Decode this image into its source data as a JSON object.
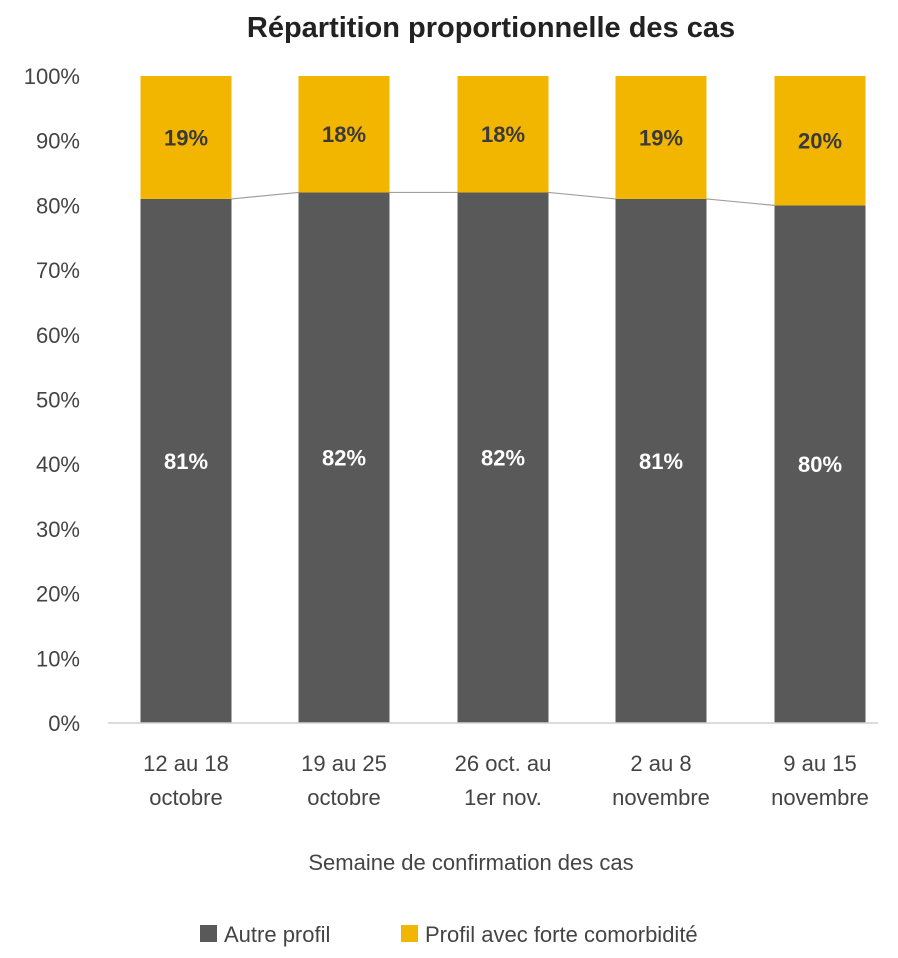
{
  "chart_data": {
    "type": "bar",
    "stacked": true,
    "title": "Répartition proportionnelle des cas",
    "xlabel": "Semaine de confirmation des cas",
    "ylabel": "",
    "ylim": [
      0,
      100
    ],
    "y_ticks": [
      "0%",
      "10%",
      "20%",
      "30%",
      "40%",
      "50%",
      "60%",
      "70%",
      "80%",
      "90%",
      "100%"
    ],
    "categories": [
      [
        "12 au 18",
        "octobre"
      ],
      [
        "19 au 25",
        "octobre"
      ],
      [
        "26 oct. au",
        "1er nov."
      ],
      [
        "2 au 8",
        "novembre"
      ],
      [
        "9 au 15",
        "novembre"
      ]
    ],
    "series": [
      {
        "name": "Autre profil",
        "color": "#595959",
        "label_color": "#ffffff",
        "values": [
          81,
          82,
          82,
          81,
          80
        ],
        "labels": [
          "81%",
          "82%",
          "82%",
          "81%",
          "80%"
        ]
      },
      {
        "name": "Profil avec forte comorbidité",
        "color": "#f2b600",
        "label_color": "#3a3a3a",
        "values": [
          19,
          18,
          18,
          19,
          20
        ],
        "labels": [
          "19%",
          "18%",
          "18%",
          "19%",
          "20%"
        ]
      }
    ],
    "series_lines": true,
    "grid": false,
    "legend_position": "bottom"
  }
}
